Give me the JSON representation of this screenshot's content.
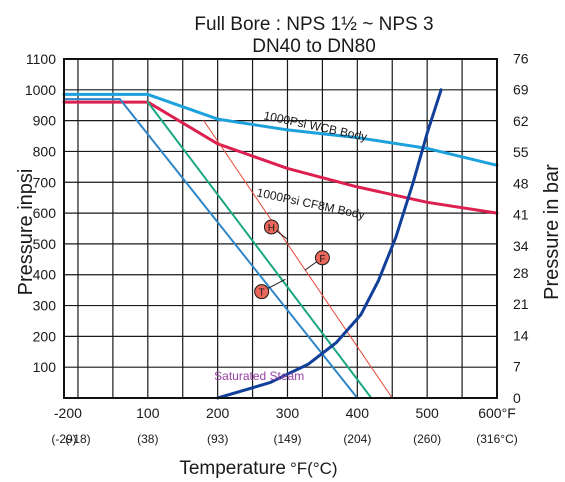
{
  "chart_data": {
    "type": "line",
    "title": "Full Bore : NPS 1½ ~ NPS 3",
    "subtitle": "DN40 to DN80",
    "ylabel_left": "Pressure inpsi",
    "ylabel_right": "Pressure in bar",
    "xlabel": "Temperature",
    "xlabel_unit": "°F(°C)",
    "xlim": [
      -20,
      600
    ],
    "ylim": [
      0,
      1100
    ],
    "x_ticks": [
      {
        "value": -20,
        "label": "-20",
        "sub": "(-29)"
      },
      {
        "value": 0,
        "label": "0",
        "sub": "(-18)"
      },
      {
        "value": 100,
        "label": "100",
        "sub": "(38)"
      },
      {
        "value": 200,
        "label": "200",
        "sub": "(93)"
      },
      {
        "value": 300,
        "label": "300",
        "sub": "(149)"
      },
      {
        "value": 400,
        "label": "400",
        "sub": "(204)"
      },
      {
        "value": 500,
        "label": "500",
        "sub": "(260)"
      },
      {
        "value": 600,
        "label": "600°F",
        "sub": "(316°C)"
      }
    ],
    "y_ticks_left": [
      {
        "value": 100,
        "label": "100"
      },
      {
        "value": 200,
        "label": "200"
      },
      {
        "value": 300,
        "label": "300"
      },
      {
        "value": 400,
        "label": "400"
      },
      {
        "value": 500,
        "label": "500"
      },
      {
        "value": 600,
        "label": "600"
      },
      {
        "value": 700,
        "label": "700"
      },
      {
        "value": 800,
        "label": "800"
      },
      {
        "value": 900,
        "label": "900"
      },
      {
        "value": 1000,
        "label": "1000"
      },
      {
        "value": 1100,
        "label": "1100"
      }
    ],
    "y_ticks_right": [
      {
        "value": 0,
        "label": "0"
      },
      {
        "value": 101.5,
        "label": "7"
      },
      {
        "value": 203,
        "label": "14"
      },
      {
        "value": 304.6,
        "label": "21"
      },
      {
        "value": 406,
        "label": "28"
      },
      {
        "value": 493,
        "label": "34"
      },
      {
        "value": 595,
        "label": "41"
      },
      {
        "value": 696,
        "label": "48"
      },
      {
        "value": 798,
        "label": "55"
      },
      {
        "value": 899,
        "label": "62"
      },
      {
        "value": 1001,
        "label": "69"
      },
      {
        "value": 1102,
        "label": "76"
      }
    ],
    "grid": true,
    "series": [
      {
        "name": "1000Psi WCB Body",
        "color": "#1da1dc",
        "width": 3,
        "x": [
          -20,
          100,
          200,
          300,
          400,
          500,
          600
        ],
        "y": [
          985,
          985,
          905,
          870,
          845,
          810,
          755
        ]
      },
      {
        "name": "1000Psi CF8M Body",
        "color": "#dc2050",
        "width": 3,
        "x": [
          -20,
          100,
          200,
          300,
          400,
          500,
          600
        ],
        "y": [
          960,
          960,
          825,
          745,
          685,
          635,
          600
        ]
      },
      {
        "color": "#2e86c8",
        "width": 2,
        "x": [
          -20,
          60,
          400
        ],
        "y": [
          970,
          970,
          0
        ]
      },
      {
        "color": "#19a882",
        "width": 2,
        "x": [
          100,
          420
        ],
        "y": [
          960,
          0
        ]
      },
      {
        "color": "#e8483a",
        "width": 1,
        "x": [
          180,
          450
        ],
        "y": [
          900,
          0
        ]
      },
      {
        "color": "#123f99",
        "width": 3,
        "x": [
          200,
          275,
          330,
          370,
          405,
          430,
          455,
          480,
          500,
          520
        ],
        "y": [
          0,
          50,
          110,
          180,
          270,
          380,
          520,
          700,
          860,
          1000
        ]
      }
    ],
    "annotations": [
      {
        "text": "1000Psi  WCB  Body",
        "x": 265,
        "y": 905,
        "rotate": 12
      },
      {
        "text": "1000Psi  CF8M  Body",
        "x": 255,
        "y": 655,
        "rotate": 12
      },
      {
        "text": "Saturated Steam",
        "x": 195,
        "y": 58,
        "rotate": 0,
        "color": "#9b3fa6"
      }
    ],
    "markers": [
      {
        "text": "H",
        "x": 277,
        "y": 555,
        "leader": [
          300,
          515
        ]
      },
      {
        "text": "F",
        "x": 350,
        "y": 455,
        "leader": [
          325,
          415
        ]
      },
      {
        "text": "T",
        "x": 263,
        "y": 345,
        "leader": [
          297,
          385
        ]
      }
    ]
  }
}
